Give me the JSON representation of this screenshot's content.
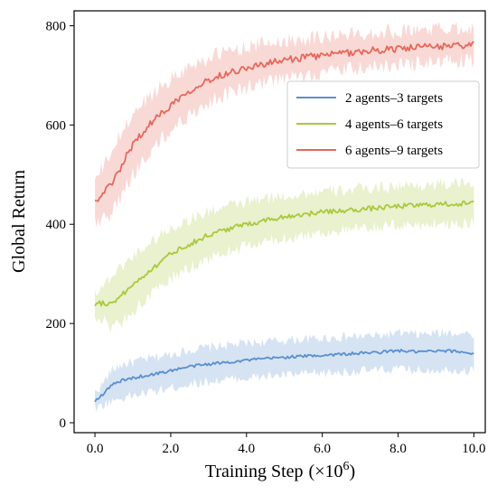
{
  "chart_data": {
    "type": "line",
    "title": "",
    "xlabel": "Training Step",
    "xlabel_unit": "(×10",
    "xlabel_exp": "6",
    "xlabel_close": ")",
    "ylabel": "Global Return",
    "xlim": [
      -0.55,
      10.3
    ],
    "ylim": [
      -20,
      830
    ],
    "x_ticks": [
      0.0,
      2.0,
      4.0,
      6.0,
      8.0,
      10.0
    ],
    "x_tick_labels": [
      "0.0",
      "2.0",
      "4.0",
      "6.0",
      "8.0",
      "10.0"
    ],
    "y_ticks": [
      0,
      200,
      400,
      600,
      800
    ],
    "y_tick_labels": [
      "0",
      "200",
      "400",
      "600",
      "800"
    ],
    "grid": false,
    "legend_position": "top-right",
    "shaded_band": "variation around mean",
    "series": [
      {
        "name": "2 agents–3 targets",
        "color": "#5b8fd0",
        "x": [
          0,
          0.5,
          1,
          1.5,
          2,
          2.5,
          3,
          3.5,
          4,
          4.5,
          5,
          5.5,
          6,
          6.5,
          7,
          7.5,
          8,
          8.5,
          9,
          9.5,
          10
        ],
        "mean": [
          45,
          78,
          90,
          97,
          105,
          113,
          118,
          122,
          126,
          129,
          132,
          134,
          136,
          138,
          140,
          142,
          145,
          143,
          144,
          144,
          140
        ],
        "lower": [
          30,
          45,
          55,
          62,
          70,
          78,
          83,
          87,
          90,
          93,
          96,
          98,
          100,
          102,
          104,
          106,
          108,
          106,
          107,
          107,
          104
        ],
        "upper": [
          62,
          108,
          122,
          130,
          138,
          146,
          152,
          156,
          160,
          163,
          166,
          168,
          170,
          172,
          174,
          176,
          180,
          178,
          180,
          182,
          178
        ]
      },
      {
        "name": "4 agents–6 targets",
        "color": "#a9c93c",
        "x": [
          0,
          0.5,
          1,
          1.5,
          2,
          2.5,
          3,
          3.5,
          4,
          4.5,
          5,
          5.5,
          6,
          6.5,
          7,
          7.5,
          8,
          8.5,
          9,
          9.5,
          10
        ],
        "mean": [
          240,
          245,
          278,
          310,
          340,
          360,
          378,
          390,
          400,
          408,
          415,
          420,
          424,
          427,
          430,
          433,
          436,
          438,
          440,
          441,
          442
        ],
        "lower": [
          215,
          195,
          225,
          258,
          290,
          312,
          330,
          344,
          355,
          364,
          372,
          378,
          383,
          387,
          390,
          394,
          397,
          399,
          401,
          402,
          403
        ],
        "upper": [
          265,
          300,
          335,
          365,
          392,
          410,
          425,
          436,
          444,
          451,
          457,
          461,
          465,
          468,
          471,
          474,
          476,
          478,
          480,
          481,
          482
        ]
      },
      {
        "name": "6 agents–9 targets",
        "color": "#e8675c",
        "x": [
          0,
          0.5,
          1,
          1.5,
          2,
          2.5,
          3,
          3.5,
          4,
          4.5,
          5,
          5.5,
          6,
          6.5,
          7,
          7.5,
          8,
          8.5,
          9,
          9.5,
          10
        ],
        "mean": [
          445,
          490,
          560,
          605,
          640,
          670,
          690,
          705,
          715,
          723,
          730,
          736,
          740,
          744,
          748,
          751,
          754,
          756,
          758,
          760,
          762
        ],
        "lower": [
          400,
          430,
          500,
          548,
          588,
          620,
          645,
          662,
          675,
          685,
          693,
          700,
          705,
          710,
          714,
          718,
          721,
          724,
          726,
          728,
          730
        ],
        "upper": [
          490,
          555,
          620,
          662,
          693,
          718,
          735,
          748,
          757,
          764,
          770,
          775,
          778,
          781,
          784,
          787,
          790,
          792,
          794,
          796,
          798
        ]
      }
    ]
  }
}
